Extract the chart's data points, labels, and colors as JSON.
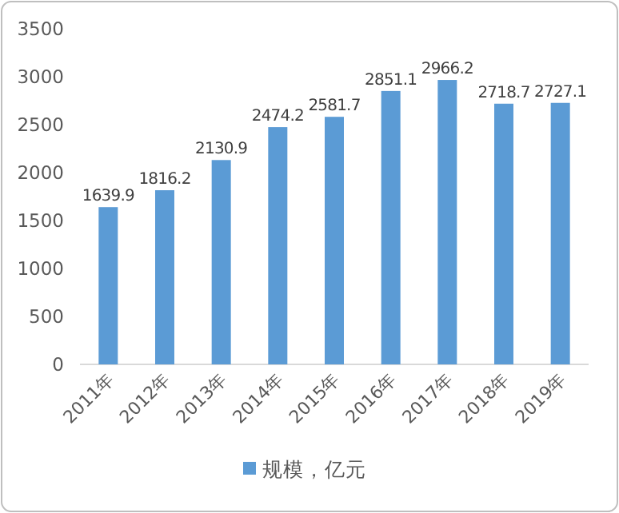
{
  "chart_data": {
    "type": "bar",
    "categories": [
      "2011年",
      "2012年",
      "2013年",
      "2014年",
      "2015年",
      "2016年",
      "2017年",
      "2018年",
      "2019年"
    ],
    "series": [
      {
        "name": "规模，亿元",
        "color": "#5b9bd5",
        "values": [
          1639.9,
          1816.2,
          2130.9,
          2474.2,
          2581.7,
          2851.1,
          2966.2,
          2718.7,
          2727.1
        ]
      }
    ],
    "ylim": [
      0,
      3500
    ],
    "yticks": [
      0,
      500,
      1000,
      1500,
      2000,
      2500,
      3000,
      3500
    ],
    "data_labels": true,
    "legend": "bottom",
    "grid": false
  }
}
